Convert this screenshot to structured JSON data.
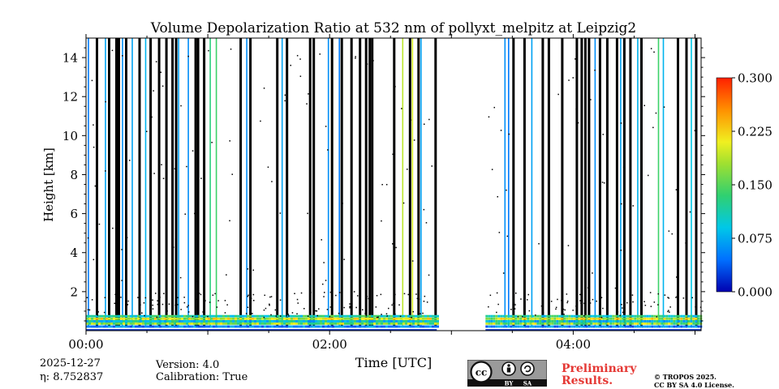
{
  "chart_data": {
    "type": "heatmap",
    "title": "Volume Depolarization Ratio at 532 nm of pollyxt_melpitz at Leipzig2",
    "xlabel": "Time [UTC]",
    "ylabel": "Height [km]",
    "xlim_hours": [
      0,
      5.05
    ],
    "ylim_km": [
      0,
      15
    ],
    "xticks": [
      {
        "h": 0,
        "label": "00:00"
      },
      {
        "h": 2,
        "label": "02:00"
      },
      {
        "h": 4,
        "label": "04:00"
      }
    ],
    "yticks": [
      {
        "v": 2,
        "label": "2"
      },
      {
        "v": 4,
        "label": "4"
      },
      {
        "v": 6,
        "label": "6"
      },
      {
        "v": 8,
        "label": "8"
      },
      {
        "v": 10,
        "label": "10"
      },
      {
        "v": 12,
        "label": "12"
      },
      {
        "v": 14,
        "label": "14"
      }
    ],
    "colorbar": {
      "min": 0.0,
      "max": 0.3,
      "ticks": [
        {
          "v": 0.0,
          "label": "0.000"
        },
        {
          "v": 0.075,
          "label": "0.075"
        },
        {
          "v": 0.15,
          "label": "0.150"
        },
        {
          "v": 0.225,
          "label": "0.225"
        },
        {
          "v": 0.3,
          "label": "0.300"
        }
      ]
    },
    "data_gap_hours": [
      2.88,
      3.28
    ],
    "stripes": [
      {
        "t": 0.02,
        "v": 0.05
      },
      {
        "t": 0.09,
        "v": -1
      },
      {
        "t": 0.16,
        "v": 0.07
      },
      {
        "t": 0.19,
        "v": -1
      },
      {
        "t": 0.25,
        "v": -1
      },
      {
        "t": 0.27,
        "v": -1
      },
      {
        "t": 0.3,
        "v": 0.06
      },
      {
        "t": 0.33,
        "v": -1
      },
      {
        "t": 0.38,
        "v": 0.07
      },
      {
        "t": 0.44,
        "v": -1
      },
      {
        "t": 0.49,
        "v": 0.08
      },
      {
        "t": 0.53,
        "v": -1
      },
      {
        "t": 0.6,
        "v": -1
      },
      {
        "t": 0.66,
        "v": -1
      },
      {
        "t": 0.71,
        "v": -1
      },
      {
        "t": 0.74,
        "v": -1
      },
      {
        "t": 0.76,
        "v": 0.07
      },
      {
        "t": 0.84,
        "v": 0.06
      },
      {
        "t": 0.9,
        "v": -1
      },
      {
        "t": 0.92,
        "v": -1
      },
      {
        "t": 0.97,
        "v": -1
      },
      {
        "t": 1.02,
        "v": 0.13
      },
      {
        "t": 1.07,
        "v": 0.14
      },
      {
        "t": 1.27,
        "v": -1
      },
      {
        "t": 1.32,
        "v": 0.06
      },
      {
        "t": 1.35,
        "v": -1
      },
      {
        "t": 1.57,
        "v": -1
      },
      {
        "t": 1.61,
        "v": 0.07
      },
      {
        "t": 1.65,
        "v": -1
      },
      {
        "t": 1.84,
        "v": -1
      },
      {
        "t": 1.87,
        "v": -1
      },
      {
        "t": 1.99,
        "v": 0.06
      },
      {
        "t": 2.02,
        "v": -1
      },
      {
        "t": 2.08,
        "v": 0.05
      },
      {
        "t": 2.1,
        "v": -1
      },
      {
        "t": 2.18,
        "v": -1
      },
      {
        "t": 2.25,
        "v": -1
      },
      {
        "t": 2.3,
        "v": -1
      },
      {
        "t": 2.33,
        "v": -1
      },
      {
        "t": 2.35,
        "v": -1
      },
      {
        "t": 2.53,
        "v": -1
      },
      {
        "t": 2.6,
        "v": 0.19
      },
      {
        "t": 2.66,
        "v": -1
      },
      {
        "t": 2.68,
        "v": 0.2
      },
      {
        "t": 2.73,
        "v": -1
      },
      {
        "t": 2.75,
        "v": 0.07
      },
      {
        "t": 2.87,
        "v": -1
      },
      {
        "t": 3.44,
        "v": 0.06
      },
      {
        "t": 3.47,
        "v": 0.05
      },
      {
        "t": 3.51,
        "v": -1
      },
      {
        "t": 3.6,
        "v": -1
      },
      {
        "t": 3.66,
        "v": 0.07
      },
      {
        "t": 3.75,
        "v": -1
      },
      {
        "t": 3.8,
        "v": -1
      },
      {
        "t": 3.91,
        "v": -1
      },
      {
        "t": 4.03,
        "v": -1
      },
      {
        "t": 4.07,
        "v": -1
      },
      {
        "t": 4.1,
        "v": -1
      },
      {
        "t": 4.13,
        "v": -1
      },
      {
        "t": 4.18,
        "v": 0.06
      },
      {
        "t": 4.22,
        "v": -1
      },
      {
        "t": 4.28,
        "v": -1
      },
      {
        "t": 4.36,
        "v": -1
      },
      {
        "t": 4.39,
        "v": 0.07
      },
      {
        "t": 4.42,
        "v": -1
      },
      {
        "t": 4.47,
        "v": -1
      },
      {
        "t": 4.53,
        "v": 0.08
      },
      {
        "t": 4.56,
        "v": -1
      },
      {
        "t": 4.7,
        "v": 0.14
      },
      {
        "t": 4.74,
        "v": 0.08
      },
      {
        "t": 4.86,
        "v": -1
      },
      {
        "t": 4.93,
        "v": -1
      },
      {
        "t": 4.97,
        "v": 0.09
      },
      {
        "t": 5.01,
        "v": -1
      }
    ]
  },
  "meta": {
    "date": "2025-12-27",
    "eta": "η: 8.752837",
    "version": "Version: 4.0",
    "calibration": "Calibration: True"
  },
  "license": {
    "cc_label": "cc",
    "by_label": "BY",
    "sa_label": "SA",
    "preliminary_1": "Preliminary",
    "preliminary_2": "Results.",
    "copyright": "© TROPOS 2025.",
    "license_text": "CC BY SA 4.0 License."
  }
}
